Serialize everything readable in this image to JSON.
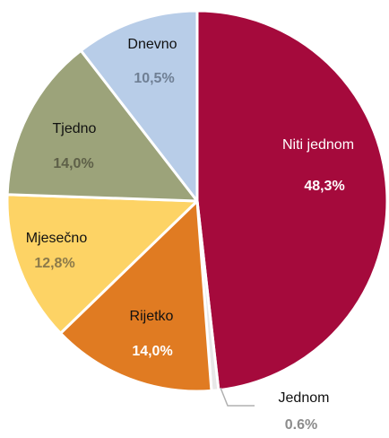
{
  "chart_data": {
    "type": "pie",
    "slices": [
      {
        "label": "Niti jednom",
        "value": 48.3,
        "value_label": "48,3%",
        "color": "#a50a3c",
        "label_color": "#ffffff",
        "value_color": "#ffffff"
      },
      {
        "label": "Jednom",
        "value": 0.6,
        "value_label": "0.6%",
        "color": "#e8e8e8",
        "label_color": "#111111",
        "value_color": "#8c8c8c"
      },
      {
        "label": "Rijetko",
        "value": 14.0,
        "value_label": "14,0%",
        "color": "#e07b22",
        "label_color": "#111111",
        "value_color": "#ffffff"
      },
      {
        "label": "Mjesečno",
        "value": 12.8,
        "value_label": "12,8%",
        "color": "#fdd365",
        "label_color": "#111111",
        "value_color": "#8c7a4a"
      },
      {
        "label": "Tjedno",
        "value": 14.0,
        "value_label": "14,0%",
        "color": "#9ca37a",
        "label_color": "#111111",
        "value_color": "#5e6048"
      },
      {
        "label": "Dnevno",
        "value": 10.5,
        "value_label": "10,5%",
        "color": "#b8cde8",
        "label_color": "#111111",
        "value_color": "#6f7f94"
      }
    ],
    "start": "12 o'clock",
    "direction": "clockwise"
  }
}
